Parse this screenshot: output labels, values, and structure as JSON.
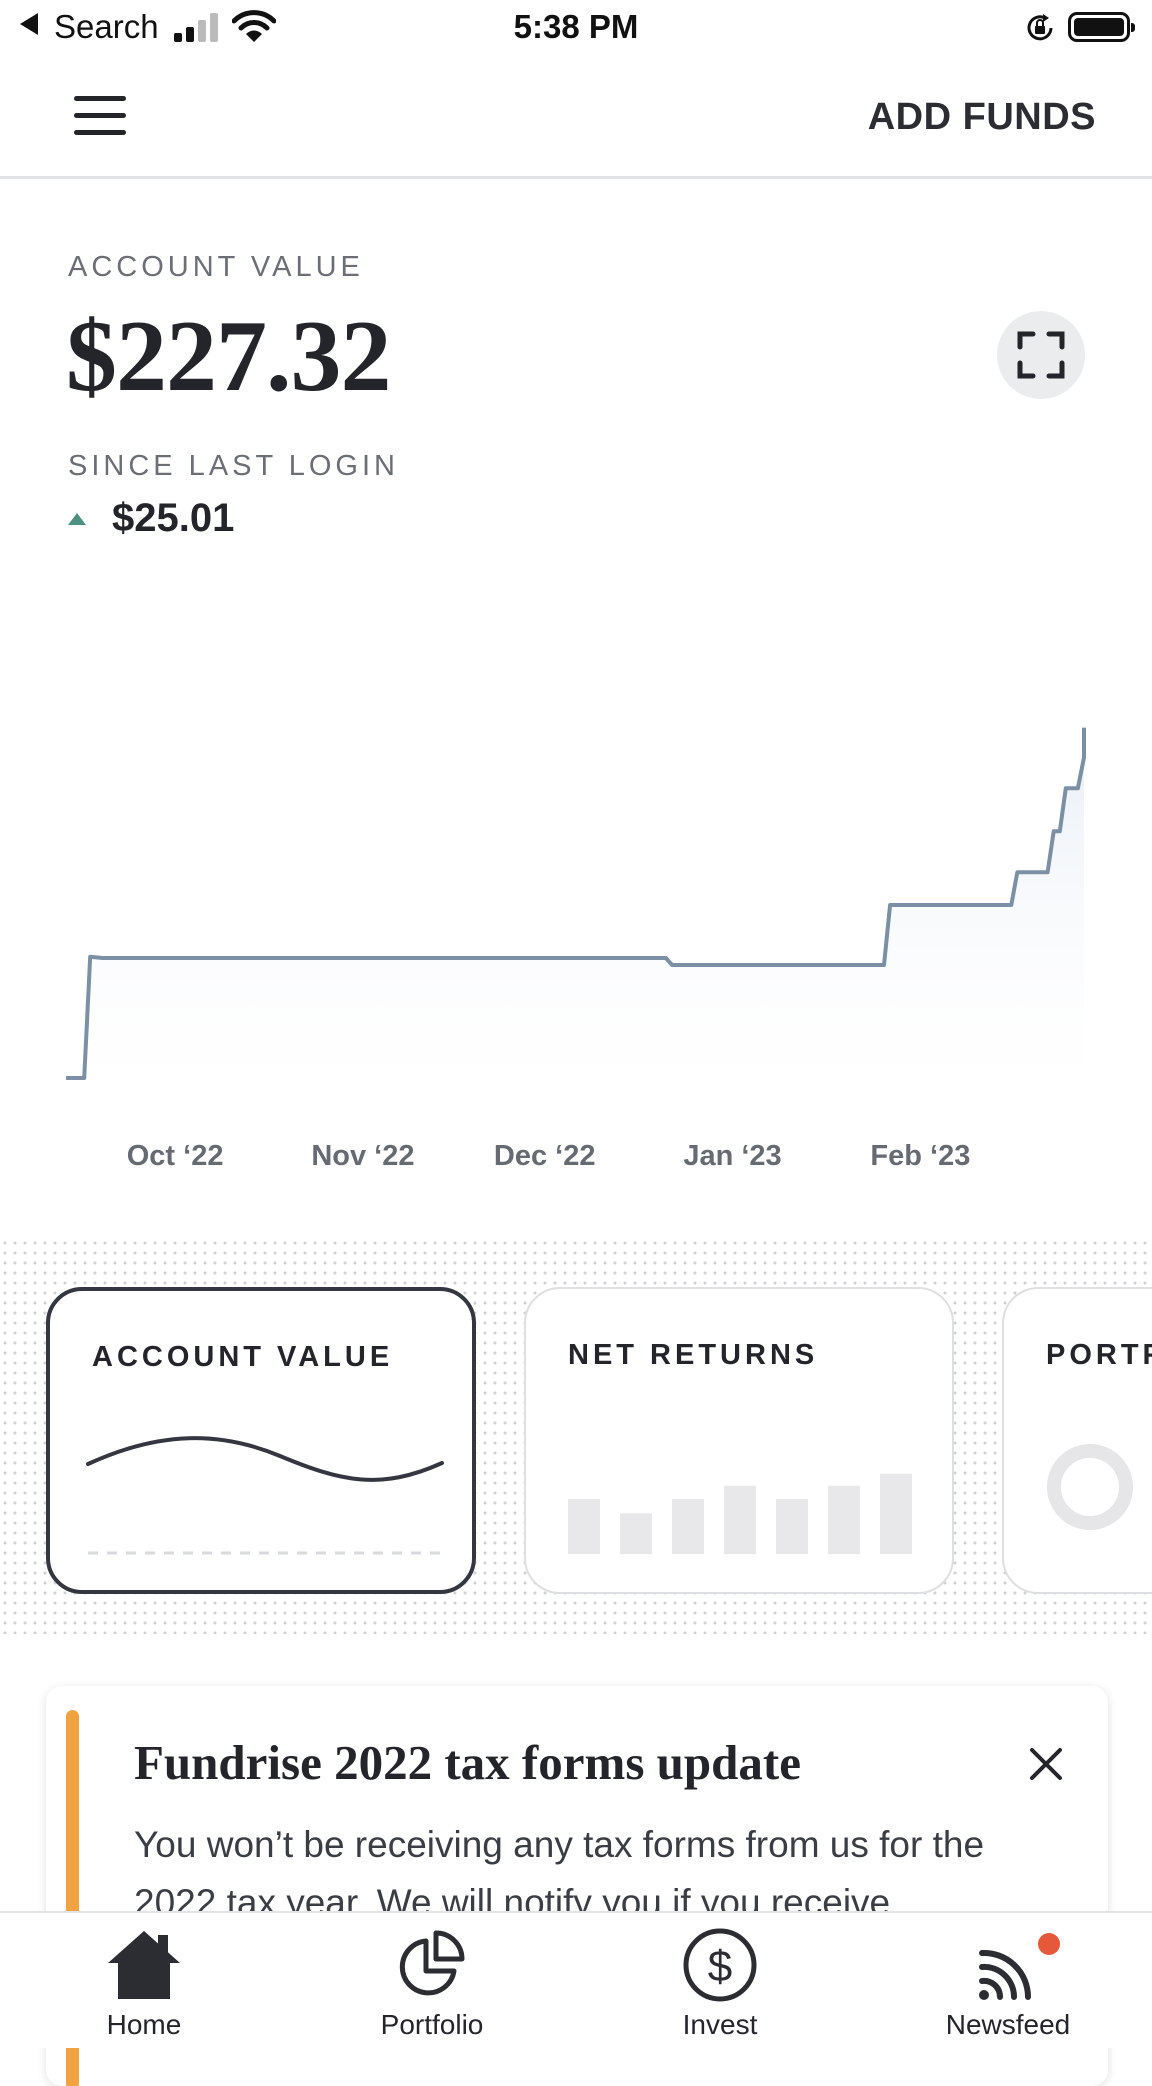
{
  "status_bar": {
    "back_label": "Search",
    "time": "5:38 PM"
  },
  "header": {
    "add_funds_label": "ADD FUNDS"
  },
  "summary": {
    "account_value_label": "ACCOUNT VALUE",
    "account_value": "$227.32",
    "since_last_login_label": "SINCE LAST LOGIN",
    "since_last_login_change": "$25.01",
    "change_direction": "up",
    "change_color": "#4d8f80"
  },
  "chart_data": {
    "type": "area",
    "title": "",
    "xlabel": "",
    "ylabel": "",
    "x_tick_labels": [
      "Oct ‘22",
      "Nov ‘22",
      "Dec ‘22",
      "Jan ‘23",
      "Feb ‘23"
    ],
    "x_domain": [
      "2022-09-13",
      "2023-02-28"
    ],
    "x_ticks": [
      "2022-10-01",
      "2022-11-01",
      "2022-12-01",
      "2023-01-01",
      "2023-02-01"
    ],
    "ylim": [
      0,
      227.32
    ],
    "series": [
      {
        "points": [
          [
            "2022-09-13",
            0
          ],
          [
            "2022-09-16",
            0
          ],
          [
            "2022-09-17",
            61.3
          ],
          [
            "2022-09-19",
            60.6
          ],
          [
            "2022-12-21",
            60.6
          ],
          [
            "2022-12-22",
            57.1
          ],
          [
            "2023-01-26",
            57.1
          ],
          [
            "2023-01-27",
            87.4
          ],
          [
            "2023-02-16",
            87.4
          ],
          [
            "2023-02-17",
            103.9
          ],
          [
            "2023-02-22",
            103.9
          ],
          [
            "2023-02-23",
            124.6
          ],
          [
            "2023-02-24",
            124.6
          ],
          [
            "2023-02-25",
            146.4
          ],
          [
            "2023-02-27",
            146.4
          ],
          [
            "2023-02-28",
            161.9
          ],
          [
            "2023-02-28",
            177.0
          ]
        ]
      }
    ],
    "line_color": "#7b90a4",
    "fill_color": "#e9eef6",
    "grid": false,
    "legend": "none"
  },
  "cards": [
    {
      "title": "ACCOUNT VALUE",
      "selected": true,
      "icon": "wave-line-icon"
    },
    {
      "title": "NET RETURNS",
      "selected": false,
      "icon": "bar-chart-icon",
      "bar_levels": [
        0.5,
        0.37,
        0.5,
        0.62,
        0.5,
        0.62,
        0.73
      ]
    },
    {
      "title": "PORTFOLIO",
      "selected": false,
      "icon": "donut-chart-icon"
    }
  ],
  "notice": {
    "title": "Fundrise 2022 tax forms update",
    "body": "You won’t be receiving any tax forms from us for the 2022 tax year. We will notify you if you receive",
    "accent_color": "#f1a342"
  },
  "bottom_nav": [
    {
      "label": "Home",
      "icon": "home-icon",
      "active": true
    },
    {
      "label": "Portfolio",
      "icon": "pie-chart-icon",
      "active": false
    },
    {
      "label": "Invest",
      "icon": "dollar-circle-icon",
      "active": false
    },
    {
      "label": "Newsfeed",
      "icon": "rss-feed-icon",
      "active": false,
      "badge_color": "#e5593a"
    }
  ]
}
